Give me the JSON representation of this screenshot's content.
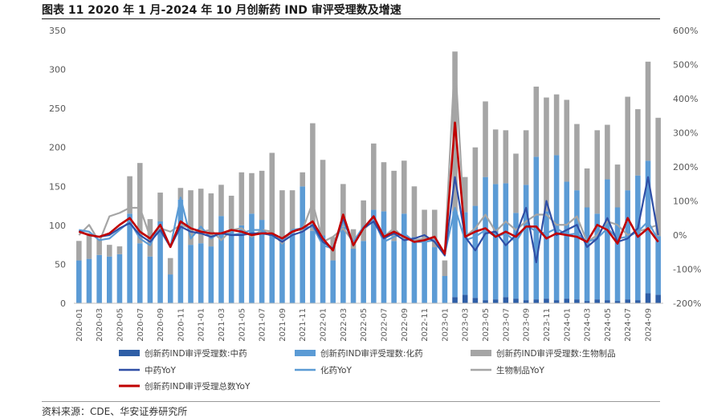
{
  "title": "图表 11 2020 年 1 月-2024 年 10 月创新药 IND 审评受理数及增速",
  "source": "资料来源：CDE、华安证券研究所",
  "colors": {
    "tcm_bar": "#2e5ea6",
    "chem_bar": "#5b9bd5",
    "bio_bar": "#a5a5a5",
    "tcm_line": "#2f4fa6",
    "chem_line": "#5b9bd5",
    "bio_line": "#a5a5a5",
    "total_line": "#c00000"
  },
  "chart_data": {
    "type": "bar",
    "stacked": true,
    "x": [
      "2020-01",
      "2020-02",
      "2020-03",
      "2020-04",
      "2020-05",
      "2020-06",
      "2020-07",
      "2020-08",
      "2020-09",
      "2020-10",
      "2020-11",
      "2020-12",
      "2021-01",
      "2021-02",
      "2021-03",
      "2021-04",
      "2021-05",
      "2021-06",
      "2021-07",
      "2021-08",
      "2021-09",
      "2021-10",
      "2021-11",
      "2021-12",
      "2022-01",
      "2022-02",
      "2022-03",
      "2022-04",
      "2022-05",
      "2022-06",
      "2022-07",
      "2022-08",
      "2022-09",
      "2022-10",
      "2022-11",
      "2022-12",
      "2023-01",
      "2023-02",
      "2023-03",
      "2023-04",
      "2023-05",
      "2023-06",
      "2023-07",
      "2023-08",
      "2023-09",
      "2023-10",
      "2023-11",
      "2023-12",
      "2024-01",
      "2024-02",
      "2024-03",
      "2024-04",
      "2024-05",
      "2024-06",
      "2024-07",
      "2024-08",
      "2024-09",
      "2024-10"
    ],
    "x_tick_labels": [
      "2020-01",
      "2020-03",
      "2020-05",
      "2020-07",
      "2020-09",
      "2020-11",
      "2021-01",
      "2021-03",
      "2021-05",
      "2021-07",
      "2021-09",
      "2021-11",
      "2022-01",
      "2022-03",
      "2022-05",
      "2022-07",
      "2022-09",
      "2022-11",
      "2023-01",
      "2023-03",
      "2023-05",
      "2023-07",
      "2023-09",
      "2023-11",
      "2024-01",
      "2024-03",
      "2024-05",
      "2024-07",
      "2024-09"
    ],
    "y_left": {
      "min": 0,
      "max": 350,
      "ticks": [
        0,
        50,
        100,
        150,
        200,
        250,
        300,
        350
      ]
    },
    "y_right": {
      "min": -200,
      "max": 600,
      "ticks": [
        -200,
        -100,
        0,
        100,
        200,
        300,
        400,
        500,
        600
      ],
      "tick_labels": [
        "-200%",
        "-100%",
        "0%",
        "100%",
        "200%",
        "300%",
        "400%",
        "500%",
        "600%"
      ]
    },
    "legend_position": "bottom",
    "bar_series": [
      {
        "name": "创新药IND审评受理数:中药",
        "values": [
          0,
          0,
          0,
          0,
          0,
          0,
          0,
          0,
          0,
          0,
          0,
          0,
          0,
          0,
          0,
          0,
          0,
          0,
          0,
          0,
          0,
          0,
          0,
          0,
          0,
          0,
          0,
          0,
          0,
          0,
          0,
          0,
          0,
          0,
          0,
          0,
          0,
          8,
          11,
          7,
          4,
          5,
          8,
          6,
          4,
          5,
          6,
          4,
          6,
          5,
          3,
          5,
          4,
          3,
          5,
          4,
          13,
          11
        ]
      },
      {
        "name": "创新药IND审评受理数:化药",
        "values": [
          55,
          57,
          62,
          60,
          63,
          115,
          77,
          60,
          105,
          37,
          133,
          75,
          77,
          73,
          112,
          93,
          100,
          115,
          107,
          90,
          85,
          90,
          150,
          93,
          87,
          55,
          98,
          70,
          80,
          120,
          118,
          80,
          115,
          85,
          80,
          72,
          35,
          110,
          106,
          118,
          158,
          148,
          146,
          110,
          148,
          183,
          112,
          186,
          150,
          140,
          120,
          110,
          155,
          120,
          140,
          160,
          170,
          75
        ]
      },
      {
        "name": "创新药IND审评受理数:生物制品",
        "values": [
          25,
          33,
          20,
          15,
          10,
          48,
          103,
          48,
          37,
          21,
          15,
          70,
          70,
          68,
          40,
          45,
          68,
          52,
          63,
          103,
          60,
          55,
          18,
          138,
          97,
          30,
          55,
          25,
          52,
          85,
          63,
          90,
          68,
          65,
          40,
          48,
          20,
          205,
          45,
          75,
          97,
          70,
          68,
          76,
          70,
          90,
          146,
          78,
          105,
          85,
          50,
          107,
          70,
          55,
          120,
          85,
          127,
          152
        ]
      }
    ],
    "line_series": [
      {
        "name": "中药YoY",
        "values": [
          12,
          0,
          -5,
          0,
          20,
          35,
          0,
          -20,
          15,
          -35,
          25,
          10,
          5,
          -5,
          5,
          0,
          0,
          5,
          5,
          0,
          -20,
          0,
          10,
          30,
          -20,
          -40,
          50,
          -30,
          20,
          40,
          -10,
          5,
          -15,
          -10,
          0,
          -20,
          -60,
          170,
          -5,
          -45,
          5,
          10,
          -30,
          0,
          80,
          -80,
          100,
          0,
          15,
          30,
          -35,
          -10,
          50,
          -20,
          -10,
          20,
          170,
          0
        ]
      },
      {
        "name": "化药YoY",
        "values": [
          15,
          10,
          -15,
          -10,
          15,
          40,
          -10,
          -30,
          35,
          -35,
          110,
          -10,
          25,
          -10,
          10,
          0,
          5,
          15,
          15,
          -5,
          -15,
          15,
          20,
          25,
          -30,
          -40,
          40,
          -20,
          25,
          45,
          -20,
          -5,
          5,
          -20,
          -20,
          -15,
          -55,
          80,
          -15,
          -5,
          15,
          -5,
          5,
          -20,
          30,
          10,
          5,
          20,
          0,
          5,
          -20,
          -10,
          20,
          -10,
          -5,
          10,
          40,
          -15
        ]
      },
      {
        "name": "生物制品YoY",
        "values": [
          0,
          30,
          -20,
          55,
          65,
          80,
          80,
          -5,
          20,
          10,
          30,
          20,
          10,
          15,
          -15,
          15,
          20,
          -5,
          15,
          10,
          -25,
          15,
          15,
          95,
          -20,
          -5,
          20,
          -20,
          15,
          45,
          -5,
          20,
          -10,
          -15,
          -10,
          -15,
          -50,
          520,
          -5,
          20,
          60,
          10,
          40,
          15,
          40,
          60,
          60,
          30,
          30,
          55,
          -20,
          0,
          40,
          30,
          0,
          10,
          20,
          30
        ]
      },
      {
        "name": "创新药IND审评受理总数YoY",
        "values": [
          10,
          0,
          -5,
          5,
          30,
          50,
          10,
          -10,
          30,
          -35,
          40,
          20,
          10,
          5,
          5,
          15,
          10,
          0,
          5,
          5,
          -10,
          10,
          20,
          40,
          -10,
          -45,
          60,
          -30,
          20,
          55,
          -5,
          10,
          -5,
          -20,
          -15,
          -5,
          -55,
          330,
          -5,
          10,
          20,
          -5,
          10,
          -5,
          25,
          25,
          -10,
          5,
          0,
          -5,
          -20,
          30,
          15,
          -25,
          50,
          -5,
          20,
          -20
        ]
      }
    ]
  }
}
